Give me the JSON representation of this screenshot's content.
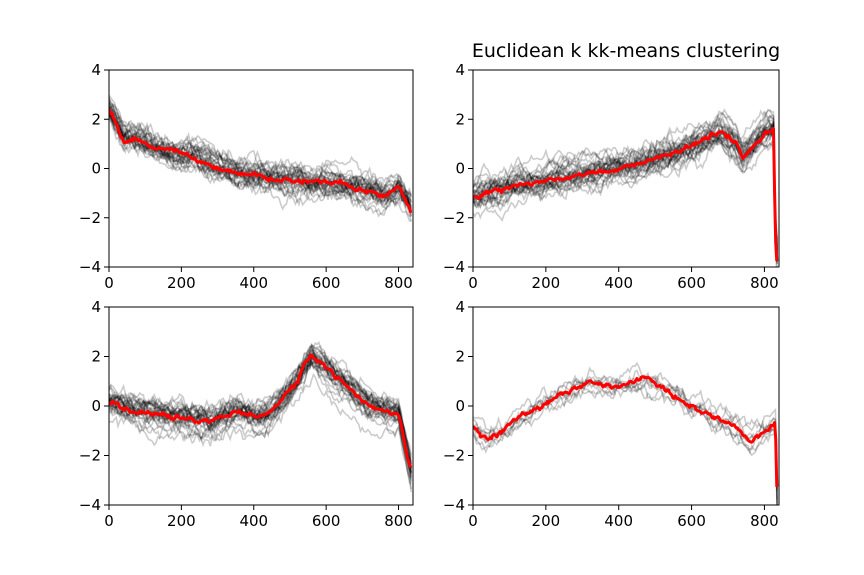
{
  "chart_data": [
    {
      "type": "line",
      "title": "",
      "xlabel": "",
      "ylabel": "",
      "xlim": [
        0,
        840
      ],
      "ylim": [
        -4,
        4
      ],
      "xticks": [
        "0",
        "200",
        "400",
        "600",
        "800"
      ],
      "yticks": [
        "4",
        "2",
        "0",
        "−2",
        "−4"
      ],
      "series": [
        {
          "role": "cluster members",
          "color": "#000000",
          "opacity": 0.2,
          "count": 30,
          "x": [
            0,
            40,
            80,
            120,
            160,
            200,
            240,
            280,
            320,
            360,
            400,
            440,
            480,
            520,
            560,
            600,
            640,
            680,
            720,
            760,
            800,
            835
          ],
          "y": [
            2.5,
            1.3,
            1.2,
            0.9,
            0.7,
            0.6,
            0.5,
            0.2,
            0.0,
            -0.2,
            -0.3,
            -0.4,
            -0.4,
            -0.5,
            -0.6,
            -0.6,
            -0.7,
            -0.8,
            -0.9,
            -1.2,
            -0.8,
            -1.6
          ]
        },
        {
          "role": "cluster barycenter",
          "color": "#ff0000",
          "x": [
            0,
            40,
            80,
            120,
            160,
            200,
            240,
            280,
            320,
            360,
            400,
            440,
            480,
            520,
            560,
            600,
            640,
            680,
            720,
            760,
            800,
            835
          ],
          "y": [
            2.4,
            1.1,
            1.2,
            0.8,
            0.8,
            0.6,
            0.4,
            0.1,
            0.0,
            -0.2,
            -0.3,
            -0.4,
            -0.4,
            -0.5,
            -0.5,
            -0.5,
            -0.6,
            -0.8,
            -0.9,
            -1.2,
            -0.7,
            -1.8
          ]
        }
      ]
    },
    {
      "type": "line",
      "title": "Euclidean k kk-means clustering",
      "xlabel": "",
      "ylabel": "",
      "xlim": [
        0,
        840
      ],
      "ylim": [
        -4,
        4
      ],
      "xticks": [
        "0",
        "200",
        "400",
        "600",
        "800"
      ],
      "yticks": [
        "4",
        "2",
        "0",
        "−2",
        "−4"
      ],
      "series": [
        {
          "role": "cluster members",
          "color": "#000000",
          "opacity": 0.2,
          "count": 30,
          "x": [
            0,
            40,
            80,
            120,
            160,
            200,
            240,
            280,
            320,
            360,
            400,
            440,
            480,
            520,
            560,
            600,
            640,
            680,
            720,
            740,
            760,
            800,
            825,
            830,
            835
          ],
          "y": [
            -1.1,
            -1.0,
            -0.9,
            -0.7,
            -0.6,
            -0.5,
            -0.4,
            -0.3,
            -0.2,
            -0.1,
            0.0,
            0.1,
            0.3,
            0.5,
            0.7,
            0.9,
            1.2,
            1.5,
            1.0,
            0.5,
            0.8,
            1.4,
            1.6,
            -2.5,
            -3.5
          ]
        },
        {
          "role": "cluster barycenter",
          "color": "#ff0000",
          "x": [
            0,
            40,
            80,
            120,
            160,
            200,
            240,
            280,
            320,
            360,
            400,
            440,
            480,
            520,
            560,
            600,
            640,
            680,
            720,
            740,
            760,
            800,
            825,
            830,
            835
          ],
          "y": [
            -1.2,
            -1.0,
            -0.9,
            -0.7,
            -0.6,
            -0.5,
            -0.4,
            -0.3,
            -0.2,
            -0.1,
            0.0,
            0.1,
            0.3,
            0.5,
            0.7,
            0.9,
            1.2,
            1.5,
            1.0,
            0.4,
            0.8,
            1.4,
            1.6,
            -2.8,
            -4.0
          ]
        }
      ]
    },
    {
      "type": "line",
      "title": "",
      "xlabel": "",
      "ylabel": "",
      "xlim": [
        0,
        840
      ],
      "ylim": [
        -4,
        4
      ],
      "xticks": [
        "0",
        "200",
        "400",
        "600",
        "800"
      ],
      "yticks": [
        "4",
        "2",
        "0",
        "−2",
        "−4"
      ],
      "series": [
        {
          "role": "cluster members",
          "color": "#000000",
          "opacity": 0.2,
          "count": 30,
          "x": [
            0,
            40,
            80,
            120,
            160,
            200,
            240,
            280,
            320,
            360,
            400,
            440,
            480,
            520,
            540,
            560,
            600,
            640,
            680,
            720,
            760,
            800,
            835
          ],
          "y": [
            0.2,
            -0.1,
            -0.2,
            -0.3,
            -0.4,
            -0.5,
            -0.5,
            -0.6,
            -0.4,
            -0.2,
            -0.5,
            -0.3,
            0.3,
            1.0,
            1.5,
            2.0,
            1.5,
            1.0,
            0.5,
            0.0,
            -0.2,
            -0.3,
            -2.8
          ]
        },
        {
          "role": "cluster barycenter",
          "color": "#ff0000",
          "x": [
            0,
            40,
            80,
            120,
            160,
            200,
            240,
            280,
            320,
            360,
            400,
            440,
            480,
            520,
            540,
            560,
            600,
            640,
            680,
            720,
            760,
            800,
            835
          ],
          "y": [
            0.2,
            -0.1,
            -0.2,
            -0.3,
            -0.4,
            -0.5,
            -0.6,
            -0.6,
            -0.4,
            -0.2,
            -0.4,
            -0.3,
            0.3,
            1.0,
            1.6,
            2.1,
            1.6,
            1.0,
            0.5,
            0.0,
            -0.2,
            -0.3,
            -2.6
          ]
        }
      ]
    },
    {
      "type": "line",
      "title": "",
      "xlabel": "",
      "ylabel": "",
      "xlim": [
        0,
        840
      ],
      "ylim": [
        -4,
        4
      ],
      "xticks": [
        "0",
        "200",
        "400",
        "600",
        "800"
      ],
      "yticks": [
        "4",
        "2",
        "0",
        "−2",
        "−4"
      ],
      "series": [
        {
          "role": "cluster members",
          "color": "#000000",
          "opacity": 0.2,
          "count": 8,
          "x": [
            0,
            40,
            80,
            120,
            160,
            200,
            240,
            280,
            320,
            360,
            400,
            440,
            480,
            520,
            560,
            600,
            640,
            680,
            720,
            760,
            800,
            830,
            835
          ],
          "y": [
            -0.8,
            -1.4,
            -1.0,
            -0.5,
            -0.2,
            0.1,
            0.4,
            0.7,
            1.0,
            0.8,
            0.9,
            1.0,
            1.0,
            0.7,
            0.4,
            0.0,
            -0.3,
            -0.6,
            -0.9,
            -1.3,
            -1.0,
            -0.8,
            -4.0
          ]
        },
        {
          "role": "cluster barycenter",
          "color": "#ff0000",
          "x": [
            0,
            40,
            80,
            120,
            160,
            200,
            240,
            280,
            320,
            360,
            400,
            440,
            480,
            520,
            560,
            600,
            640,
            680,
            720,
            760,
            800,
            830,
            835
          ],
          "y": [
            -0.8,
            -1.4,
            -1.0,
            -0.5,
            -0.2,
            0.1,
            0.4,
            0.7,
            1.1,
            0.8,
            0.8,
            1.0,
            1.1,
            0.7,
            0.3,
            0.0,
            -0.3,
            -0.6,
            -0.9,
            -1.4,
            -1.0,
            -0.7,
            -4.0
          ]
        }
      ]
    }
  ]
}
